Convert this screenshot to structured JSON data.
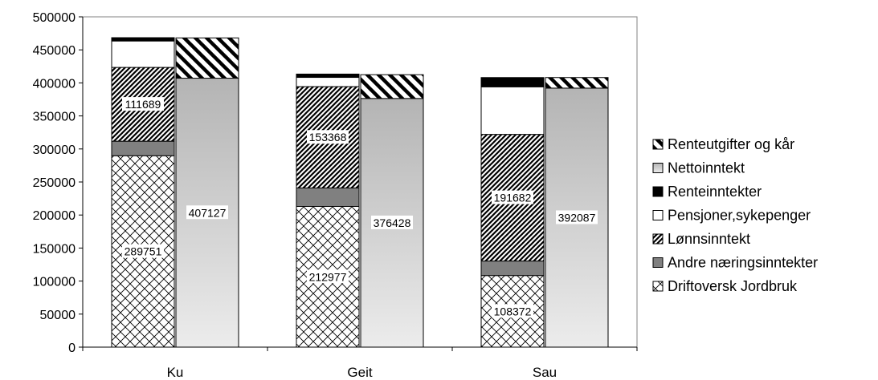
{
  "chart_data": {
    "type": "bar",
    "stacked": true,
    "categories": [
      "Ku",
      "Geit",
      "Sau"
    ],
    "ylim": [
      0,
      500000
    ],
    "yticks": [
      0,
      50000,
      100000,
      150000,
      200000,
      250000,
      300000,
      350000,
      400000,
      450000,
      500000
    ],
    "grid": false,
    "legend_position": "right",
    "income_stack": [
      {
        "name": "Driftoversk Jordbruk",
        "values": [
          289751,
          212977,
          108372
        ],
        "labels": [
          "289751",
          "212977",
          "108372"
        ],
        "pattern": "diamond",
        "color": "#ffffff"
      },
      {
        "name": "Andre næringsinntekter",
        "values": [
          22000,
          28000,
          22000
        ],
        "pattern": "solid",
        "color": "#808080"
      },
      {
        "name": "Lønnsinntekt",
        "values": [
          111689,
          153368,
          191682
        ],
        "labels": [
          "111689",
          "153368",
          "191682"
        ],
        "pattern": "diagonal",
        "color": "#333333"
      },
      {
        "name": "Pensjoner,sykepenger",
        "values": [
          40000,
          14000,
          72000
        ],
        "pattern": "solid",
        "color": "#ffffff"
      },
      {
        "name": "Renteinntekter",
        "values": [
          5000,
          5000,
          14000
        ],
        "pattern": "solid",
        "color": "#000000"
      }
    ],
    "use_stack": [
      {
        "name": "Nettoinntekt",
        "values": [
          407127,
          376428,
          392087
        ],
        "labels": [
          "407127",
          "376428",
          "392087"
        ],
        "pattern": "gradient",
        "color": "#c0c0c0"
      },
      {
        "name": "Renteutgifter og kår",
        "values": [
          61000,
          36000,
          16000
        ],
        "pattern": "wide-diagonal",
        "color": "#000000"
      }
    ],
    "legend": [
      "Renteutgifter og kår",
      "Nettoinntekt",
      "Renteinntekter",
      "Pensjoner,sykepenger",
      "Lønnsinntekt",
      "Andre næringsinntekter",
      "Driftoversk Jordbruk"
    ]
  }
}
